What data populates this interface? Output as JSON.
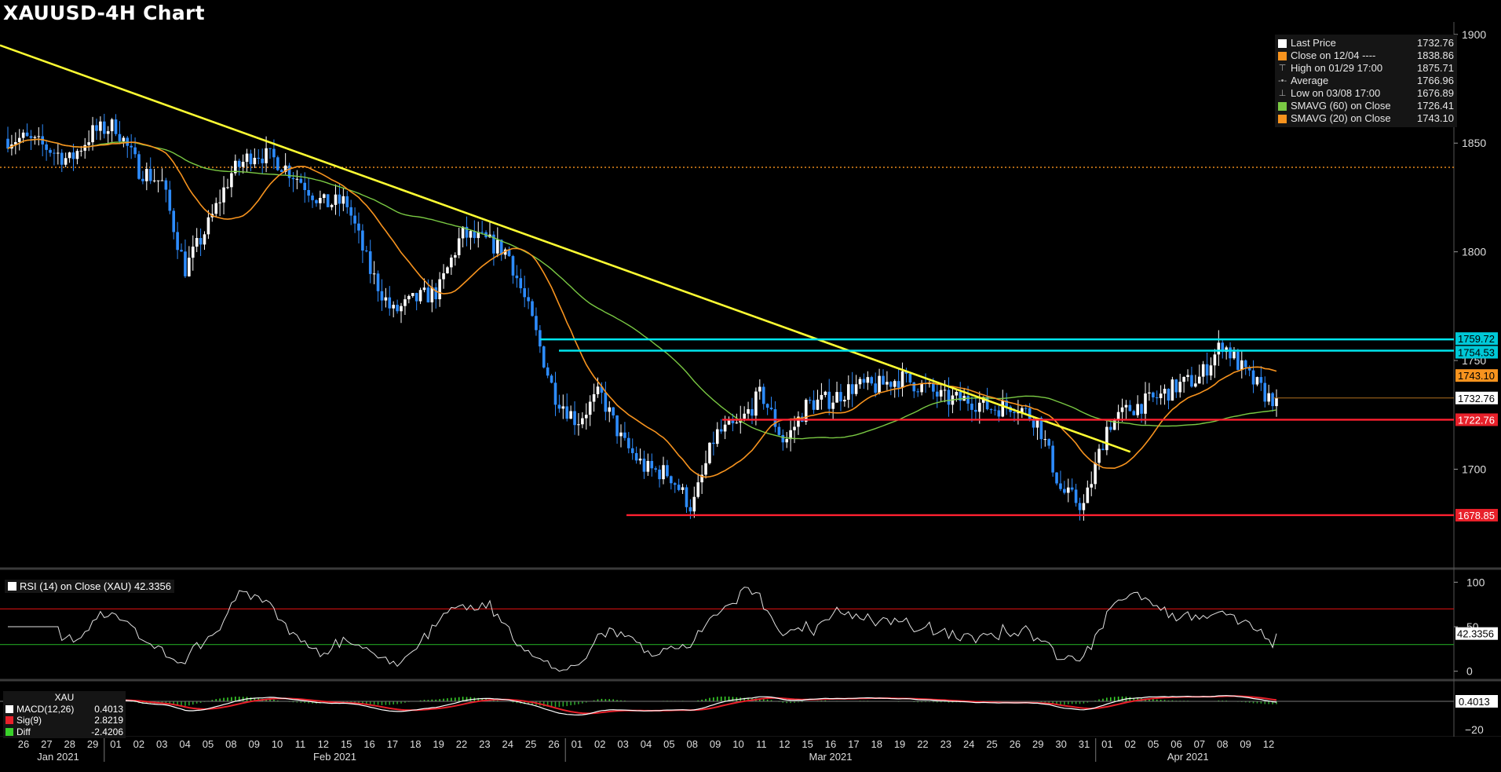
{
  "title": "XAUUSD-4H Chart",
  "legend": [
    {
      "label": "Last Price",
      "value": "1732.76",
      "color": "#ffffff",
      "icon": "square"
    },
    {
      "label": "Close on 12/04 ----",
      "value": "1838.86",
      "color": "#f7931e",
      "icon": "square"
    },
    {
      "label": "High on 01/29 17:00",
      "value": "1875.71",
      "color": "#aaaaaa",
      "icon": "high-marker-icon"
    },
    {
      "label": "Average",
      "value": "1766.96",
      "color": "#aaaaaa",
      "icon": "average-marker-icon"
    },
    {
      "label": "Low on 03/08 17:00",
      "value": "1676.89",
      "color": "#aaaaaa",
      "icon": "low-marker-icon"
    },
    {
      "label": "SMAVG (60)  on Close",
      "value": "1726.41",
      "color": "#7ac943",
      "icon": "square"
    },
    {
      "label": "SMAVG (20)  on Close",
      "value": "1743.10",
      "color": "#f7931e",
      "icon": "square"
    }
  ],
  "price_labels": [
    {
      "value": "1759.72",
      "bg": "#00c8d7",
      "fg": "#000000"
    },
    {
      "value": "1754.53",
      "bg": "#00c8d7",
      "fg": "#000000"
    },
    {
      "value": "1743.10",
      "bg": "#f7931e",
      "fg": "#000000"
    },
    {
      "value": "1732.76",
      "bg": "#ffffff",
      "fg": "#000000"
    },
    {
      "value": "1722.76",
      "bg": "#e8202a",
      "fg": "#ffffff"
    },
    {
      "value": "1678.85",
      "bg": "#e8202a",
      "fg": "#ffffff"
    }
  ],
  "rsi": {
    "label": "RSI (14)   on Close (XAU)",
    "value": "42.3356",
    "upper": 70,
    "lower": 30,
    "axis": [
      "100",
      "50",
      "0"
    ]
  },
  "macd": {
    "label": "XAU",
    "items": [
      {
        "label": "MACD(12,26)",
        "value": "0.4013",
        "color": "#ffffff"
      },
      {
        "label": "Sig(9)",
        "value": "2.8219",
        "color": "#e8202a"
      },
      {
        "label": "Diff",
        "value": "-2.4206",
        "color": "#39d12a"
      }
    ],
    "axis_label": "0.4013",
    "axis": [
      "−20"
    ]
  },
  "x_axis": {
    "ticks": [
      "26",
      "27",
      "28",
      "29",
      "01",
      "02",
      "03",
      "04",
      "05",
      "08",
      "09",
      "10",
      "11",
      "12",
      "15",
      "16",
      "17",
      "18",
      "19",
      "22",
      "23",
      "24",
      "25",
      "26",
      "01",
      "02",
      "03",
      "04",
      "05",
      "08",
      "09",
      "10",
      "11",
      "12",
      "15",
      "16",
      "17",
      "18",
      "19",
      "22",
      "23",
      "24",
      "25",
      "26",
      "29",
      "30",
      "31",
      "01",
      "02",
      "05",
      "06",
      "07",
      "08",
      "09",
      "12"
    ],
    "months": [
      "Jan 2021",
      "Feb 2021",
      "Mar 2021",
      "Apr 2021"
    ]
  },
  "colors": {
    "up": "#ffffff",
    "down": "#2d8cff",
    "sma20": "#f7931e",
    "sma60": "#7ac943",
    "trendline": "#ffff33",
    "resistance": "#00e5ee",
    "support": "#ff2030",
    "rsi_band": "#d01010",
    "rsi_low": "#20a020"
  },
  "chart_data": [
    {
      "type": "candlestick",
      "title": "XAUUSD-4H Chart",
      "interval": "4H",
      "ylim": [
        1655,
        1905
      ],
      "y_ticks": [
        1700,
        1750,
        1800,
        1850,
        1900
      ],
      "close_anchors": [
        [
          "26",
          1852
        ],
        [
          "27",
          1848
        ],
        [
          "28",
          1842
        ],
        [
          "29",
          1855
        ],
        [
          "01",
          1858
        ],
        [
          "02",
          1838
        ],
        [
          "03",
          1832
        ],
        [
          "04",
          1792
        ],
        [
          "05",
          1812
        ],
        [
          "08",
          1836
        ],
        [
          "09",
          1846
        ],
        [
          "10",
          1842
        ],
        [
          "11",
          1833
        ],
        [
          "12",
          1822
        ],
        [
          "15",
          1823
        ],
        [
          "16",
          1792
        ],
        [
          "17",
          1772
        ],
        [
          "18",
          1778
        ],
        [
          "19",
          1782
        ],
        [
          "22",
          1808
        ],
        [
          "23",
          1805
        ],
        [
          "24",
          1800
        ],
        [
          "25",
          1770
        ],
        [
          "26",
          1735
        ],
        [
          "01",
          1722
        ],
        [
          "02",
          1735
        ],
        [
          "03",
          1712
        ],
        [
          "04",
          1700
        ],
        [
          "05",
          1698
        ],
        [
          "08",
          1682
        ],
        [
          "09",
          1716
        ],
        [
          "10",
          1720
        ],
        [
          "11",
          1735
        ],
        [
          "12",
          1712
        ],
        [
          "15",
          1730
        ],
        [
          "16",
          1732
        ],
        [
          "17",
          1738
        ],
        [
          "18",
          1738
        ],
        [
          "19",
          1742
        ],
        [
          "22",
          1738
        ],
        [
          "23",
          1732
        ],
        [
          "24",
          1732
        ],
        [
          "25",
          1728
        ],
        [
          "26",
          1730
        ],
        [
          "29",
          1722
        ],
        [
          "30",
          1690
        ],
        [
          "31",
          1683
        ],
        [
          "01",
          1720
        ],
        [
          "02",
          1728
        ],
        [
          "05",
          1732
        ],
        [
          "06",
          1738
        ],
        [
          "07",
          1742
        ],
        [
          "08",
          1758
        ],
        [
          "09",
          1744
        ],
        [
          "12",
          1732.76
        ]
      ],
      "last_price": 1732.76,
      "previous_close_line": 1838.86,
      "sma20_last": 1743.1,
      "sma60_last": 1726.41,
      "high": {
        "date": "01/29 17:00",
        "value": 1875.71
      },
      "low": {
        "date": "03/08 17:00",
        "value": 1676.89
      },
      "average": 1766.96,
      "trendline": {
        "from": [
          "26",
          1895
        ],
        "to": [
          "02",
          1708
        ]
      },
      "resistance": [
        1759.72,
        1754.53
      ],
      "support": [
        1722.76,
        1678.85
      ]
    },
    {
      "type": "line",
      "name": "RSI (14)",
      "ylim": [
        -10,
        110
      ],
      "y_ticks": [
        0,
        50,
        100
      ],
      "bands": [
        30,
        70
      ],
      "last": 42.3356
    },
    {
      "type": "line",
      "name": "MACD(12,26)",
      "series": [
        {
          "name": "MACD(12,26)",
          "last": 0.4013
        },
        {
          "name": "Sig(9)",
          "last": 2.8219
        },
        {
          "name": "Diff",
          "last": -2.4206
        }
      ],
      "y_ticks": [
        -20
      ]
    }
  ]
}
